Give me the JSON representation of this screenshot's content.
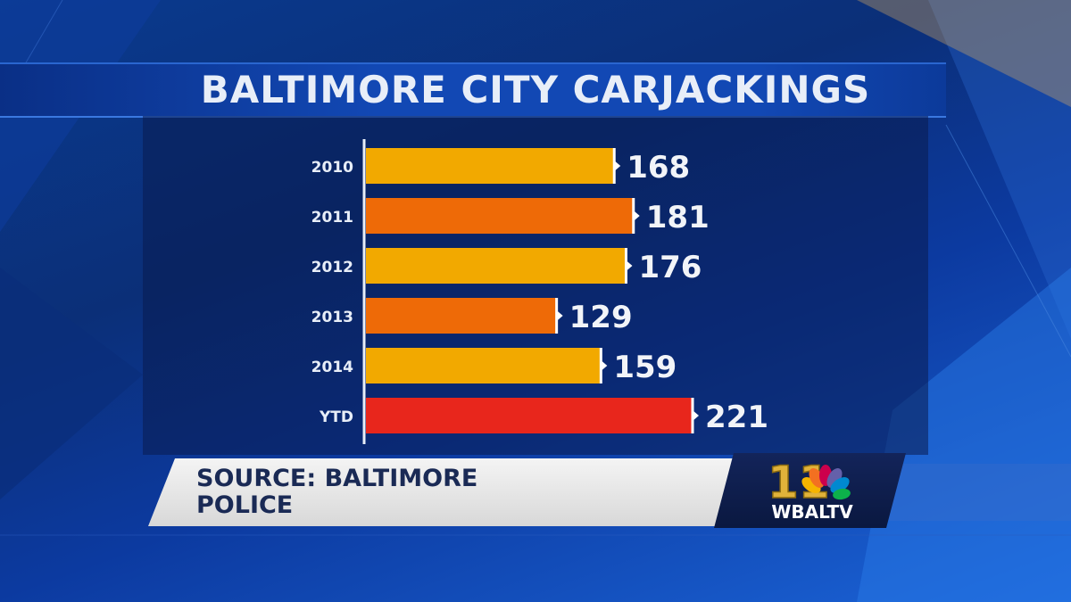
{
  "title": "BALTIMORE CITY CARJACKINGS",
  "source": "SOURCE: BALTIMORE\nPOLICE",
  "station_logo": {
    "channel": "11",
    "call_letters": "WBALTV"
  },
  "colors": {
    "bar_yellow": "#f2a900",
    "bar_orange": "#ee6a07",
    "bar_red": "#e8261c",
    "background": "#0b2f78"
  },
  "chart_data": {
    "type": "bar",
    "orientation": "horizontal",
    "title": "BALTIMORE CITY CARJACKINGS",
    "categories": [
      "2010",
      "2011",
      "2012",
      "2013",
      "2014",
      "YTD"
    ],
    "values": [
      168,
      181,
      176,
      129,
      159,
      221
    ],
    "bar_colors": [
      "#f2a900",
      "#ee6a07",
      "#f2a900",
      "#ee6a07",
      "#f2a900",
      "#e8261c"
    ],
    "data_labels": [
      "168",
      "181",
      "176",
      "129",
      "159",
      "221"
    ],
    "xlabel": "",
    "ylabel": "",
    "grid": false,
    "legend": "none"
  }
}
